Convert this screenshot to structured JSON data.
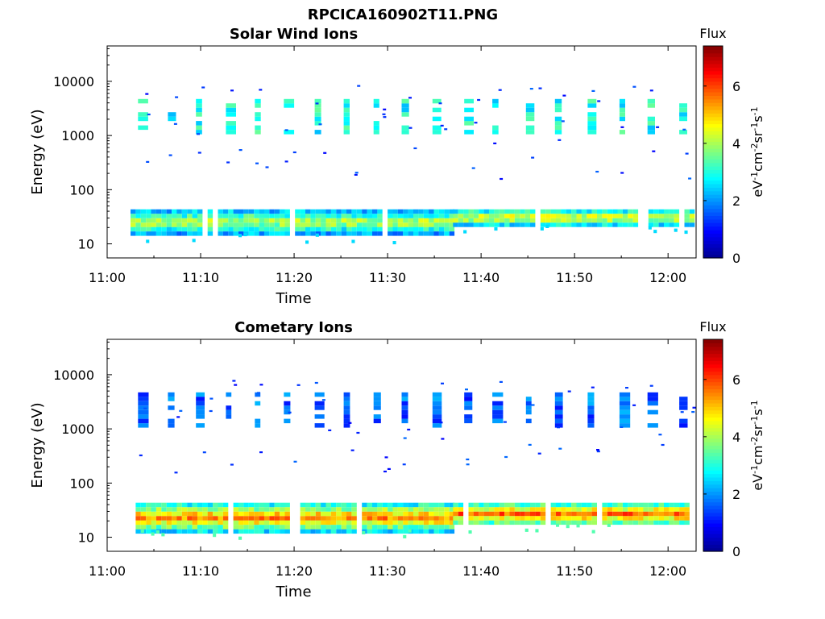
{
  "figure_title": "RPCICA160902T11.PNG",
  "colors": {
    "jet": [
      "#00008f",
      "#0000ff",
      "#0080ff",
      "#00ffff",
      "#80ff80",
      "#ffff00",
      "#ff8000",
      "#ff0000",
      "#800000"
    ]
  },
  "chart_data": [
    {
      "type": "heatmap",
      "title": "Solar Wind Ions",
      "xlabel": "Time",
      "ylabel": "Energy (eV)",
      "x_ticks": [
        "11:00",
        "11:10",
        "11:20",
        "11:30",
        "11:40",
        "11:50",
        "12:00"
      ],
      "y_ticks": [
        "10",
        "100",
        "1000",
        "10000"
      ],
      "yscale": "log",
      "ylim_eV": [
        5.5,
        45000
      ],
      "xlim_min": [
        0,
        63
      ],
      "colorbar": {
        "label": "Flux",
        "unit": "eV-1cm-2sr-1s-1",
        "ticks": [
          "0",
          "2",
          "4",
          "6"
        ],
        "range": [
          0,
          7.4
        ]
      },
      "bursts_min": [
        3.3,
        6.5,
        9.5,
        12.7,
        15.8,
        18.9,
        22.2,
        25.3,
        28.5,
        31.5,
        34.8,
        38.2,
        41.2,
        44.8,
        47.9,
        51.4,
        54.8,
        57.8,
        61.2
      ],
      "upper_band_eV": [
        1100,
        4500
      ],
      "upper_band_flux": 2.8,
      "lower_band": [
        {
          "t_start": 2.5,
          "t_end": 37.0,
          "e_low": 16,
          "e_high": 40,
          "flux": 4.2
        },
        {
          "t_start": 37.0,
          "t_end": 62.5,
          "e_low": 22,
          "e_high": 42,
          "flux": 4.6
        }
      ]
    },
    {
      "type": "heatmap",
      "title": "Cometary Ions",
      "xlabel": "Time",
      "ylabel": "Energy (eV)",
      "x_ticks": [
        "11:00",
        "11:10",
        "11:20",
        "11:30",
        "11:40",
        "11:50",
        "12:00"
      ],
      "y_ticks": [
        "10",
        "100",
        "1000",
        "10000"
      ],
      "yscale": "log",
      "ylim_eV": [
        5.5,
        45000
      ],
      "xlim_min": [
        0,
        63
      ],
      "colorbar": {
        "label": "Flux",
        "unit": "eV-1cm-2sr-1s-1",
        "ticks": [
          "0",
          "2",
          "4",
          "6"
        ],
        "range": [
          0,
          7.4
        ]
      },
      "bursts_min": [
        3.3,
        6.5,
        9.5,
        12.7,
        15.8,
        18.9,
        22.2,
        25.3,
        28.5,
        31.5,
        34.8,
        38.2,
        41.2,
        44.8,
        47.9,
        51.4,
        54.8,
        57.8,
        61.2
      ],
      "upper_band_eV": [
        1200,
        4000
      ],
      "upper_band_flux": 1.5,
      "lower_band": [
        {
          "t_start": 2.5,
          "t_end": 37.0,
          "e_low": 14,
          "e_high": 38,
          "flux": 5.6
        },
        {
          "t_start": 37.0,
          "t_end": 62.5,
          "e_low": 18,
          "e_high": 40,
          "flux": 5.8
        }
      ]
    }
  ]
}
